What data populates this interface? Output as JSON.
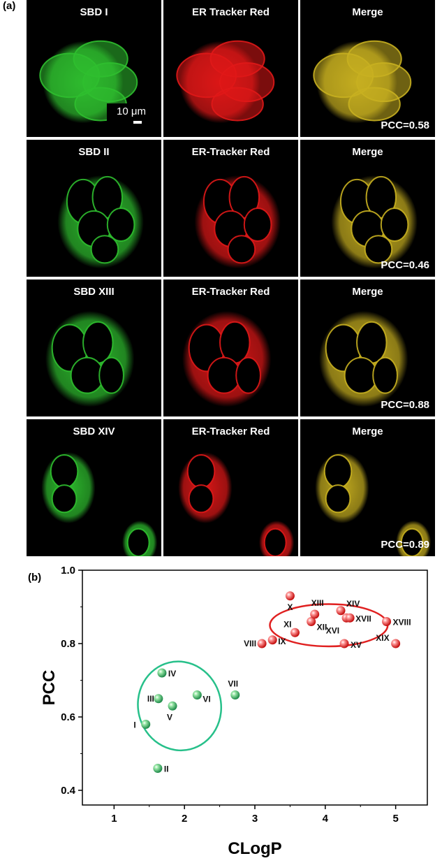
{
  "panel_a_label": "(a)",
  "panel_b_label": "(b)",
  "scale_bar": "10 μm",
  "rows": [
    {
      "probe": "SBD I",
      "tracker": "ER Tracker Red",
      "merge": "Merge",
      "pcc": "PCC=0.58"
    },
    {
      "probe": "SBD II",
      "tracker": "ER-Tracker Red",
      "merge": "Merge",
      "pcc": "PCC=0.46"
    },
    {
      "probe": "SBD XIII",
      "tracker": "ER-Tracker Red",
      "merge": "Merge",
      "pcc": "PCC=0.88"
    },
    {
      "probe": "SBD XIV",
      "tracker": "ER-Tracker Red",
      "merge": "Merge",
      "pcc": "PCC=0.89"
    }
  ],
  "colors": {
    "green_channel": "#2fbf2f",
    "red_channel": "#e01818",
    "merge_channel": "#c8b020",
    "green_cluster": "#27c08a",
    "red_cluster": "#e02020"
  },
  "chart_data": {
    "type": "scatter",
    "xlabel": "CLogP",
    "ylabel": "PCC",
    "xlim": [
      0.55,
      5.45
    ],
    "ylim": [
      0.36,
      1.0
    ],
    "xticks": [
      "1",
      "2",
      "3",
      "4",
      "5"
    ],
    "yticks": [
      "0.4",
      "0.6",
      "0.8",
      "1.0"
    ],
    "series": [
      {
        "color": "green",
        "points": [
          {
            "label": "I",
            "x": 1.45,
            "y": 0.58
          },
          {
            "label": "II",
            "x": 1.62,
            "y": 0.46
          },
          {
            "label": "III",
            "x": 1.63,
            "y": 0.65
          },
          {
            "label": "IV",
            "x": 1.68,
            "y": 0.72
          },
          {
            "label": "V",
            "x": 1.83,
            "y": 0.63
          },
          {
            "label": "VI",
            "x": 2.18,
            "y": 0.66
          },
          {
            "label": "VII",
            "x": 2.72,
            "y": 0.66
          }
        ]
      },
      {
        "color": "red",
        "points": [
          {
            "label": "VIII",
            "x": 3.1,
            "y": 0.8
          },
          {
            "label": "IX",
            "x": 3.25,
            "y": 0.81
          },
          {
            "label": "X",
            "x": 3.5,
            "y": 0.93
          },
          {
            "label": "XI",
            "x": 3.57,
            "y": 0.83
          },
          {
            "label": "XII",
            "x": 3.8,
            "y": 0.86
          },
          {
            "label": "XIII",
            "x": 3.85,
            "y": 0.88
          },
          {
            "label": "XIV",
            "x": 4.22,
            "y": 0.89
          },
          {
            "label": "XV",
            "x": 4.27,
            "y": 0.8
          },
          {
            "label": "XVI",
            "x": 4.3,
            "y": 0.87
          },
          {
            "label": "XVII",
            "x": 4.35,
            "y": 0.87
          },
          {
            "label": "XVIII",
            "x": 4.87,
            "y": 0.86
          },
          {
            "label": "XIX",
            "x": 5.0,
            "y": 0.8
          }
        ]
      }
    ],
    "ellipses": [
      {
        "color": "green",
        "cx": 1.93,
        "cy": 0.63,
        "rx_data": 0.95,
        "ry_data": 0.19,
        "rotate": -14
      },
      {
        "color": "red",
        "cx": 4.05,
        "cy": 0.85,
        "rx_data": 1.35,
        "ry_data": 0.09,
        "rotate": 0
      }
    ]
  }
}
